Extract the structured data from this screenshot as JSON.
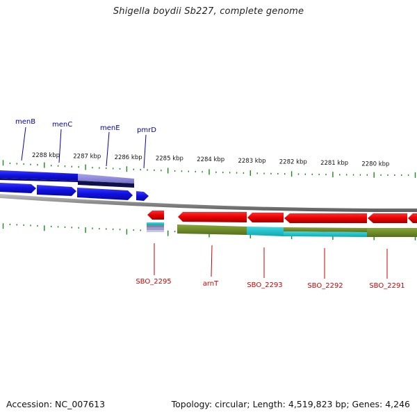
{
  "title": "Shigella boydii Sb227, complete genome",
  "footer": {
    "accession": "Accession: NC_007613",
    "stats": "Topology: circular; Length: 4,519,823 bp; Genes: 4,246"
  },
  "colors": {
    "tick": "#1a8a1a",
    "forward_gene": "#1010e0",
    "forward_label": "#0000aa",
    "reverse_gene": "#e80000",
    "reverse_label": "#cc0000",
    "backbone": "#8a8a8a",
    "olive": "#6e8a1e",
    "cyan": "#16c0c8",
    "lavender": "#8c88d8",
    "navy": "#10104a"
  },
  "scale": {
    "unit": "kbp",
    "labels": [
      "2288 kbp",
      "2287 kbp",
      "2286 kbp",
      "2285 kbp",
      "2284 kbp",
      "2283 kbp",
      "2282 kbp",
      "2281 kbp",
      "2280 kbp"
    ]
  },
  "forward_genes": [
    {
      "name": "menB"
    },
    {
      "name": "menC"
    },
    {
      "name": "menE"
    },
    {
      "name": "pmrD"
    }
  ],
  "reverse_genes": [
    {
      "name": "SBO_2295"
    },
    {
      "name": "arnT"
    },
    {
      "name": "SBO_2293"
    },
    {
      "name": "SBO_2292"
    },
    {
      "name": "SBO_2291"
    }
  ]
}
